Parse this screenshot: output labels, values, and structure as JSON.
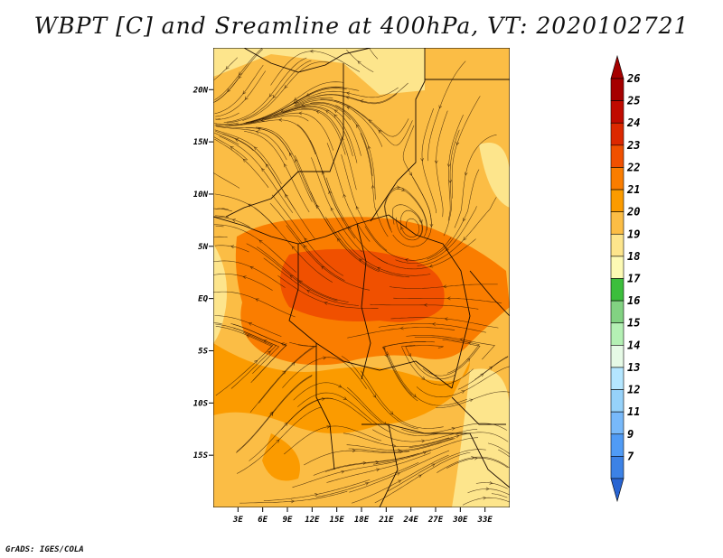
{
  "title": "WBPT [C] and Sreamline at 400hPa, VT: 2020102721",
  "credit": "GrADS: IGES/COLA",
  "map": {
    "lon_range": [
      0,
      36
    ],
    "lat_range": [
      -20,
      24
    ],
    "lon_ticks": [
      {
        "value": 3,
        "label": "3E"
      },
      {
        "value": 6,
        "label": "6E"
      },
      {
        "value": 9,
        "label": "9E"
      },
      {
        "value": 12,
        "label": "12E"
      },
      {
        "value": 15,
        "label": "15E"
      },
      {
        "value": 18,
        "label": "18E"
      },
      {
        "value": 21,
        "label": "21E"
      },
      {
        "value": 24,
        "label": "24E"
      },
      {
        "value": 27,
        "label": "27E"
      },
      {
        "value": 30,
        "label": "30E"
      },
      {
        "value": 33,
        "label": "33E"
      }
    ],
    "lat_ticks": [
      {
        "value": 20,
        "label": "20N"
      },
      {
        "value": 15,
        "label": "15N"
      },
      {
        "value": 10,
        "label": "10N"
      },
      {
        "value": 5,
        "label": "5N"
      },
      {
        "value": 0,
        "label": "EQ"
      },
      {
        "value": -5,
        "label": "5S"
      },
      {
        "value": -10,
        "label": "10S"
      },
      {
        "value": -15,
        "label": "15S"
      }
    ]
  },
  "colorbar": {
    "levels": [
      {
        "label": "26",
        "color": "#a50000"
      },
      {
        "label": "25",
        "color": "#c00a00"
      },
      {
        "label": "24",
        "color": "#dc2800"
      },
      {
        "label": "23",
        "color": "#f05000"
      },
      {
        "label": "22",
        "color": "#fa7d00"
      },
      {
        "label": "21",
        "color": "#fb9b00"
      },
      {
        "label": "20",
        "color": "#fbbd45"
      },
      {
        "label": "19",
        "color": "#fde58c"
      },
      {
        "label": "18",
        "color": "#fdfab4"
      },
      {
        "label": "17",
        "color": "#3cbe3c"
      },
      {
        "label": "16",
        "color": "#82d282"
      },
      {
        "label": "15",
        "color": "#b4f0b4"
      },
      {
        "label": "14",
        "color": "#e6fae6"
      },
      {
        "label": "13",
        "color": "#b4e6ff"
      },
      {
        "label": "12",
        "color": "#96d2fa"
      },
      {
        "label": "11",
        "color": "#78b9fa"
      },
      {
        "label": "9",
        "color": "#509bf5"
      },
      {
        "label": "7",
        "color": "#3c82e6"
      }
    ],
    "top_cap_color": "#a50000",
    "bottom_cap_color": "#2864d2"
  }
}
